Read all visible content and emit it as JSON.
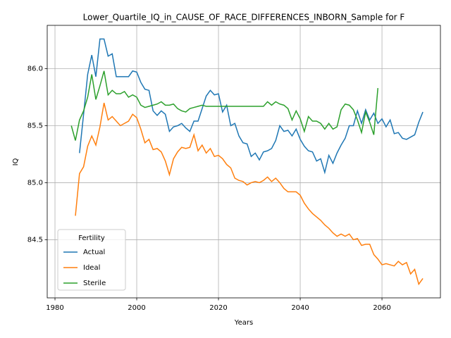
{
  "chart_data": {
    "type": "line",
    "title": "Lower_Quartile_IQ_in_CAUSE_OF_RACE_DIFFERENCES_INBORN_Sample for F",
    "xlabel": "Years",
    "ylabel": "IQ",
    "x": [
      1984,
      1985,
      1986,
      1987,
      1988,
      1989,
      1990,
      1991,
      1992,
      1993,
      1994,
      1995,
      1996,
      1997,
      1998,
      1999,
      2000,
      2001,
      2002,
      2003,
      2004,
      2005,
      2006,
      2007,
      2008,
      2009,
      2010,
      2011,
      2012,
      2013,
      2014,
      2015,
      2016,
      2017,
      2018,
      2019,
      2020,
      2021,
      2022,
      2023,
      2024,
      2025,
      2026,
      2027,
      2028,
      2029,
      2030,
      2031,
      2032,
      2033,
      2034,
      2035,
      2036,
      2037,
      2038,
      2039,
      2040,
      2041,
      2042,
      2043,
      2044,
      2045,
      2046,
      2047,
      2048,
      2049,
      2050,
      2051,
      2052,
      2053,
      2054,
      2055,
      2056,
      2057,
      2058,
      2059,
      2060,
      2061,
      2062,
      2063,
      2064,
      2065,
      2066,
      2067,
      2068,
      2069,
      2070
    ],
    "series": [
      {
        "name": "Actual",
        "color": "#1f77b4",
        "values": [
          null,
          null,
          85.26,
          85.6,
          85.95,
          86.12,
          85.93,
          86.26,
          86.26,
          86.11,
          86.13,
          85.93,
          85.93,
          85.93,
          85.93,
          85.98,
          85.97,
          85.88,
          85.82,
          85.81,
          85.63,
          85.59,
          85.63,
          85.6,
          85.45,
          85.49,
          85.5,
          85.52,
          85.48,
          85.45,
          85.54,
          85.54,
          85.65,
          85.76,
          85.81,
          85.77,
          85.78,
          85.62,
          85.68,
          85.5,
          85.52,
          85.41,
          85.35,
          85.34,
          85.23,
          85.26,
          85.2,
          85.27,
          85.28,
          85.3,
          85.37,
          85.5,
          85.45,
          85.46,
          85.41,
          85.47,
          85.38,
          85.32,
          85.28,
          85.27,
          85.19,
          85.21,
          85.09,
          85.24,
          85.17,
          85.26,
          85.33,
          85.39,
          85.5,
          85.5,
          85.63,
          85.52,
          85.64,
          85.55,
          85.61,
          85.52,
          85.56,
          85.49,
          85.55,
          85.43,
          85.44,
          85.39,
          85.38,
          85.4,
          85.42,
          85.53,
          85.62
        ]
      },
      {
        "name": "Ideal",
        "color": "#ff7f0e",
        "values": [
          null,
          84.71,
          85.08,
          85.14,
          85.32,
          85.41,
          85.33,
          85.49,
          85.7,
          85.55,
          85.58,
          85.54,
          85.5,
          85.52,
          85.54,
          85.6,
          85.57,
          85.47,
          85.35,
          85.38,
          85.29,
          85.3,
          85.27,
          85.19,
          85.07,
          85.21,
          85.27,
          85.31,
          85.3,
          85.31,
          85.42,
          85.28,
          85.33,
          85.26,
          85.3,
          85.23,
          85.24,
          85.21,
          85.16,
          85.13,
          85.04,
          85.02,
          85.01,
          84.98,
          85.0,
          85.01,
          85.0,
          85.02,
          85.05,
          85.01,
          85.04,
          85.0,
          84.95,
          84.92,
          84.92,
          84.92,
          84.89,
          84.82,
          84.77,
          84.73,
          84.7,
          84.67,
          84.63,
          84.6,
          84.56,
          84.53,
          84.55,
          84.53,
          84.55,
          84.5,
          84.51,
          84.45,
          84.46,
          84.46,
          84.37,
          84.33,
          84.28,
          84.29,
          84.28,
          84.27,
          84.31,
          84.28,
          84.3,
          84.2,
          84.24,
          84.11,
          84.16
        ]
      },
      {
        "name": "Sterile",
        "color": "#2ca02c",
        "values": [
          85.5,
          85.37,
          85.55,
          85.63,
          85.75,
          85.95,
          85.73,
          85.85,
          85.98,
          85.77,
          85.81,
          85.78,
          85.78,
          85.8,
          85.75,
          85.77,
          85.75,
          85.68,
          85.66,
          85.67,
          85.68,
          85.69,
          85.71,
          85.68,
          85.68,
          85.69,
          85.65,
          85.63,
          85.62,
          85.65,
          85.66,
          85.67,
          85.68,
          85.67,
          85.67,
          85.67,
          85.67,
          85.67,
          85.67,
          85.67,
          85.67,
          85.67,
          85.67,
          85.67,
          85.67,
          85.67,
          85.67,
          85.67,
          85.71,
          85.68,
          85.71,
          85.69,
          85.68,
          85.65,
          85.55,
          85.63,
          85.56,
          85.45,
          85.58,
          85.54,
          85.54,
          85.52,
          85.47,
          85.52,
          85.47,
          85.49,
          85.64,
          85.69,
          85.68,
          85.64,
          85.55,
          85.44,
          85.62,
          85.53,
          85.42,
          85.83,
          null,
          null,
          null,
          null,
          null,
          null,
          null,
          null,
          null,
          null,
          null
        ]
      }
    ],
    "xlim": [
      1978.1,
      2074.3
    ],
    "ylim": [
      83.99,
      86.38
    ],
    "xticks": [
      1980,
      2000,
      2020,
      2040,
      2060
    ],
    "yticks": [
      84.5,
      {
        "value": 85,
        "label": "85.0"
      },
      85.5,
      {
        "value": 86,
        "label": "86.0"
      }
    ],
    "grid": true,
    "legend_title": "Fertility",
    "legend_position": "lower left"
  }
}
